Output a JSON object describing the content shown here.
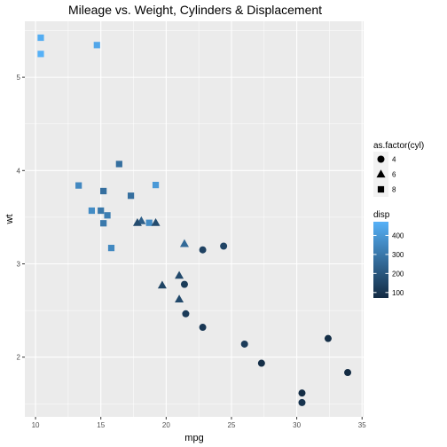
{
  "chart_data": {
    "type": "scatter",
    "title": "Mileage vs. Weight, Cylinders & Displacement",
    "xlabel": "mpg",
    "ylabel": "wt",
    "xlim": [
      9.18,
      35.12
    ],
    "ylim": [
      1.36,
      5.6
    ],
    "xticks": [
      10,
      15,
      20,
      25,
      30,
      35
    ],
    "yticks": [
      2,
      3,
      4,
      5
    ],
    "grid": true,
    "legend_position": "right",
    "shape_legend": {
      "title": "as.factor(cyl)",
      "entries": [
        {
          "label": "4",
          "shape": "circle"
        },
        {
          "label": "6",
          "shape": "triangle"
        },
        {
          "label": "8",
          "shape": "square"
        }
      ]
    },
    "color_legend": {
      "title": "disp",
      "low_color": "#132B43",
      "high_color": "#56B1F7",
      "min": 71.1,
      "max": 472,
      "ticks": [
        100,
        200,
        300,
        400
      ]
    },
    "points": [
      {
        "mpg": 21.0,
        "wt": 2.62,
        "cyl": "6",
        "disp": 160
      },
      {
        "mpg": 21.0,
        "wt": 2.875,
        "cyl": "6",
        "disp": 160
      },
      {
        "mpg": 22.8,
        "wt": 2.32,
        "cyl": "4",
        "disp": 108
      },
      {
        "mpg": 21.4,
        "wt": 3.215,
        "cyl": "6",
        "disp": 258
      },
      {
        "mpg": 18.7,
        "wt": 3.44,
        "cyl": "8",
        "disp": 360
      },
      {
        "mpg": 18.1,
        "wt": 3.46,
        "cyl": "6",
        "disp": 225
      },
      {
        "mpg": 14.3,
        "wt": 3.57,
        "cyl": "8",
        "disp": 360
      },
      {
        "mpg": 24.4,
        "wt": 3.19,
        "cyl": "4",
        "disp": 146.7
      },
      {
        "mpg": 22.8,
        "wt": 3.15,
        "cyl": "4",
        "disp": 140.8
      },
      {
        "mpg": 19.2,
        "wt": 3.44,
        "cyl": "6",
        "disp": 167.6
      },
      {
        "mpg": 17.8,
        "wt": 3.44,
        "cyl": "6",
        "disp": 167.6
      },
      {
        "mpg": 16.4,
        "wt": 4.07,
        "cyl": "8",
        "disp": 275.8
      },
      {
        "mpg": 17.3,
        "wt": 3.73,
        "cyl": "8",
        "disp": 275.8
      },
      {
        "mpg": 15.2,
        "wt": 3.78,
        "cyl": "8",
        "disp": 275.8
      },
      {
        "mpg": 10.4,
        "wt": 5.25,
        "cyl": "8",
        "disp": 472
      },
      {
        "mpg": 10.4,
        "wt": 5.424,
        "cyl": "8",
        "disp": 460
      },
      {
        "mpg": 14.7,
        "wt": 5.345,
        "cyl": "8",
        "disp": 440
      },
      {
        "mpg": 32.4,
        "wt": 2.2,
        "cyl": "4",
        "disp": 78.7
      },
      {
        "mpg": 30.4,
        "wt": 1.615,
        "cyl": "4",
        "disp": 75.7
      },
      {
        "mpg": 33.9,
        "wt": 1.835,
        "cyl": "4",
        "disp": 71.1
      },
      {
        "mpg": 21.5,
        "wt": 2.465,
        "cyl": "4",
        "disp": 120.1
      },
      {
        "mpg": 15.5,
        "wt": 3.52,
        "cyl": "8",
        "disp": 318
      },
      {
        "mpg": 15.2,
        "wt": 3.435,
        "cyl": "8",
        "disp": 304
      },
      {
        "mpg": 13.3,
        "wt": 3.84,
        "cyl": "8",
        "disp": 350
      },
      {
        "mpg": 19.2,
        "wt": 3.845,
        "cyl": "8",
        "disp": 400
      },
      {
        "mpg": 27.3,
        "wt": 1.935,
        "cyl": "4",
        "disp": 79
      },
      {
        "mpg": 26.0,
        "wt": 2.14,
        "cyl": "4",
        "disp": 120.3
      },
      {
        "mpg": 30.4,
        "wt": 1.513,
        "cyl": "4",
        "disp": 95.1
      },
      {
        "mpg": 15.8,
        "wt": 3.17,
        "cyl": "8",
        "disp": 351
      },
      {
        "mpg": 19.7,
        "wt": 2.77,
        "cyl": "6",
        "disp": 145
      },
      {
        "mpg": 15.0,
        "wt": 3.57,
        "cyl": "8",
        "disp": 301
      },
      {
        "mpg": 21.4,
        "wt": 2.78,
        "cyl": "4",
        "disp": 121
      }
    ]
  }
}
